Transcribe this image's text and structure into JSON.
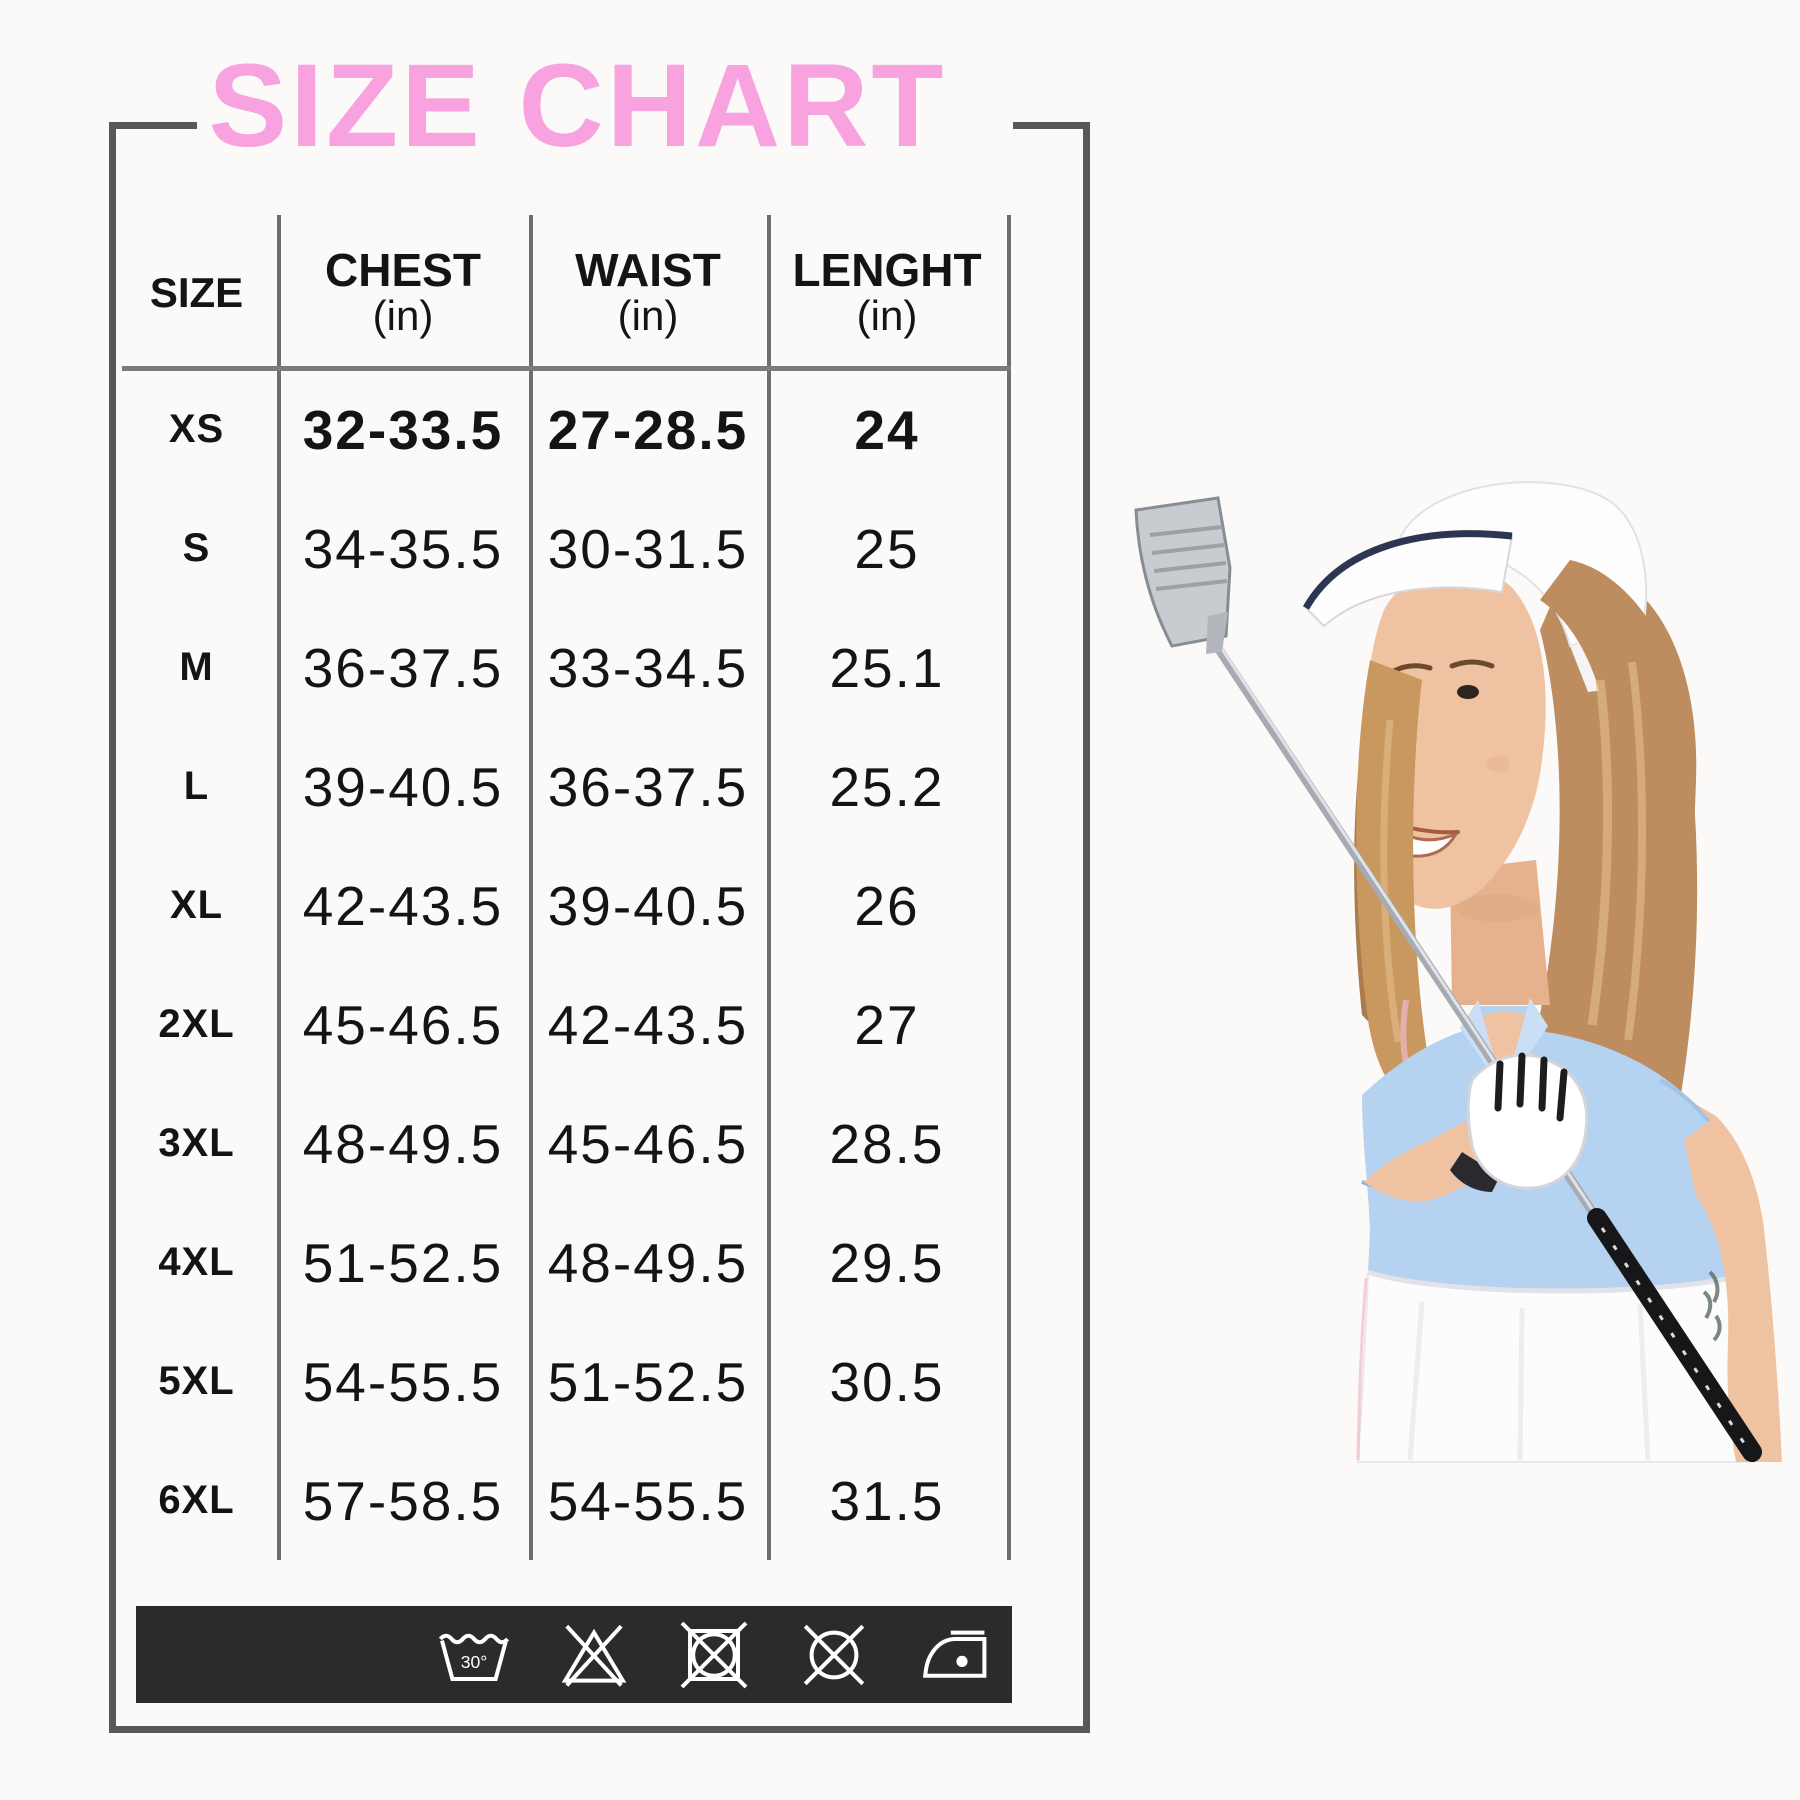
{
  "title": "SIZE CHART",
  "table": {
    "columns": [
      "SIZE",
      "CHEST",
      "WAIST",
      "LENGHT"
    ],
    "unit": "(in)",
    "rows": [
      {
        "size": "XS",
        "chest": "32-33.5",
        "waist": "27-28.5",
        "length": "24",
        "bold": true
      },
      {
        "size": "S",
        "chest": "34-35.5",
        "waist": "30-31.5",
        "length": "25",
        "bold": false
      },
      {
        "size": "M",
        "chest": "36-37.5",
        "waist": "33-34.5",
        "length": "25.1",
        "bold": false
      },
      {
        "size": "L",
        "chest": "39-40.5",
        "waist": "36-37.5",
        "length": "25.2",
        "bold": false
      },
      {
        "size": "XL",
        "chest": "42-43.5",
        "waist": "39-40.5",
        "length": "26",
        "bold": false
      },
      {
        "size": "2XL",
        "chest": "45-46.5",
        "waist": "42-43.5",
        "length": "27",
        "bold": false
      },
      {
        "size": "3XL",
        "chest": "48-49.5",
        "waist": "45-46.5",
        "length": "28.5",
        "bold": false
      },
      {
        "size": "4XL",
        "chest": "51-52.5",
        "waist": "48-49.5",
        "length": "29.5",
        "bold": false
      },
      {
        "size": "5XL",
        "chest": "54-55.5",
        "waist": "51-52.5",
        "length": "30.5",
        "bold": false
      },
      {
        "size": "6XL",
        "chest": "57-58.5",
        "waist": "54-55.5",
        "length": "31.5",
        "bold": false
      }
    ]
  },
  "care": {
    "wash_temp": "30°",
    "symbols": [
      "wash-at-30",
      "do-not-bleach",
      "do-not-tumble-dry",
      "do-not-dry-clean",
      "iron-one-dot"
    ]
  },
  "colors": {
    "title_pink": "#f8a2e0",
    "frame_gray": "#58585a",
    "divider_gray": "#6e6e6e",
    "care_bar_bg": "#2d2a2b",
    "text_black": "#141414",
    "polo_blue": "#b5d2f0",
    "skin": "#efc3a1",
    "hair": "#bd8d5f",
    "hair_highlight": "#e0b883",
    "visor_trim": "#2c3652",
    "club_gray": "#a7abb1",
    "skirt_white": "#fcfcfd"
  }
}
